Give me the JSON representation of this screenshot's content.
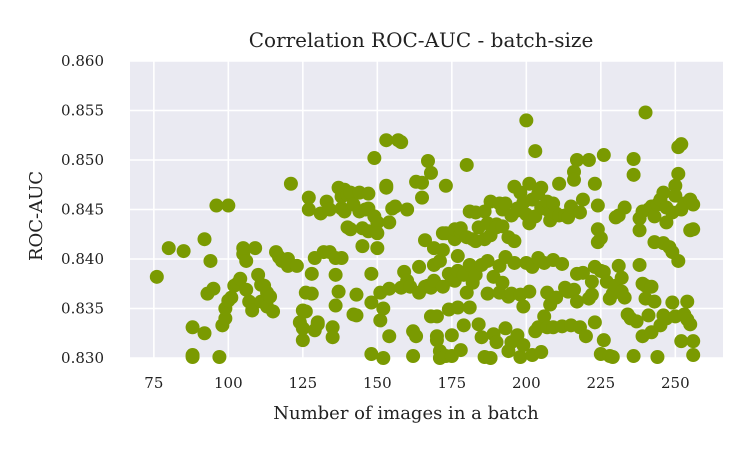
{
  "chart_data": {
    "type": "scatter",
    "title": "Correlation ROC-AUC - batch-size",
    "xlabel": "Number of images in a batch",
    "ylabel": "ROC-AUC",
    "xlim": [
      67,
      266
    ],
    "ylim": [
      0.83,
      0.86
    ],
    "xticks": [
      75,
      100,
      125,
      150,
      175,
      200,
      225,
      250
    ],
    "yticks": [
      "0.830",
      "0.835",
      "0.840",
      "0.845",
      "0.850",
      "0.855",
      "0.860"
    ],
    "grid": true,
    "colors": {
      "marker": "#7a9a01",
      "plot_bg": "#eaeaf2",
      "grid": "#ffffff"
    },
    "points": [
      [
        76,
        0.8382
      ],
      [
        80,
        0.8411
      ],
      [
        85,
        0.8408
      ],
      [
        88,
        0.8331
      ],
      [
        88,
        0.8303
      ],
      [
        88,
        0.8301
      ],
      [
        92,
        0.8325
      ],
      [
        92,
        0.842
      ],
      [
        93,
        0.8365
      ],
      [
        94,
        0.8398
      ],
      [
        95,
        0.837
      ],
      [
        96,
        0.8454
      ],
      [
        97,
        0.8301
      ],
      [
        98,
        0.8333
      ],
      [
        99,
        0.834
      ],
      [
        99,
        0.835
      ],
      [
        100,
        0.8454
      ],
      [
        100,
        0.8358
      ],
      [
        101,
        0.8361
      ],
      [
        102,
        0.8373
      ],
      [
        103,
        0.8375
      ],
      [
        104,
        0.838
      ],
      [
        105,
        0.8405
      ],
      [
        105,
        0.8411
      ],
      [
        106,
        0.8398
      ],
      [
        106,
        0.8369
      ],
      [
        107,
        0.8357
      ],
      [
        108,
        0.8348
      ],
      [
        109,
        0.8411
      ],
      [
        110,
        0.8384
      ],
      [
        111,
        0.8357
      ],
      [
        111,
        0.8374
      ],
      [
        112,
        0.8373
      ],
      [
        113,
        0.8352
      ],
      [
        113,
        0.8366
      ],
      [
        114,
        0.8362
      ],
      [
        115,
        0.8347
      ],
      [
        116,
        0.8407
      ],
      [
        117,
        0.8402
      ],
      [
        118,
        0.8398
      ],
      [
        120,
        0.84
      ],
      [
        120,
        0.8393
      ],
      [
        121,
        0.8476
      ],
      [
        123,
        0.8393
      ],
      [
        124,
        0.8336
      ],
      [
        125,
        0.8348
      ],
      [
        125,
        0.8318
      ],
      [
        125,
        0.833
      ],
      [
        126,
        0.8347
      ],
      [
        126,
        0.8366
      ],
      [
        127,
        0.845
      ],
      [
        127,
        0.8462
      ],
      [
        128,
        0.8385
      ],
      [
        128,
        0.8365
      ],
      [
        129,
        0.8401
      ],
      [
        129,
        0.8328
      ],
      [
        130,
        0.8336
      ],
      [
        130,
        0.8334
      ],
      [
        131,
        0.8446
      ],
      [
        132,
        0.8407
      ],
      [
        133,
        0.8458
      ],
      [
        134,
        0.8407
      ],
      [
        134,
        0.845
      ],
      [
        135,
        0.8331
      ],
      [
        135,
        0.8321
      ],
      [
        136,
        0.8401
      ],
      [
        136,
        0.8384
      ],
      [
        136,
        0.8353
      ],
      [
        137,
        0.8367
      ],
      [
        137,
        0.8472
      ],
      [
        138,
        0.8401
      ],
      [
        138,
        0.8451
      ],
      [
        138,
        0.8463
      ],
      [
        139,
        0.8448
      ],
      [
        139,
        0.847
      ],
      [
        140,
        0.8432
      ],
      [
        140,
        0.8465
      ],
      [
        141,
        0.843
      ],
      [
        141,
        0.8467
      ],
      [
        142,
        0.8455
      ],
      [
        142,
        0.8344
      ],
      [
        143,
        0.8343
      ],
      [
        143,
        0.8364
      ],
      [
        144,
        0.8448
      ],
      [
        144,
        0.8467
      ],
      [
        145,
        0.8431
      ],
      [
        145,
        0.8413
      ],
      [
        146,
        0.845
      ],
      [
        147,
        0.8428
      ],
      [
        147,
        0.8466
      ],
      [
        147,
        0.8451
      ],
      [
        148,
        0.8385
      ],
      [
        148,
        0.8356
      ],
      [
        148,
        0.8304
      ],
      [
        149,
        0.8502
      ],
      [
        149,
        0.8443
      ],
      [
        150,
        0.8437
      ],
      [
        150,
        0.8411
      ],
      [
        150,
        0.8426
      ],
      [
        151,
        0.8366
      ],
      [
        151,
        0.8338
      ],
      [
        152,
        0.835
      ],
      [
        152,
        0.83
      ],
      [
        153,
        0.8474
      ],
      [
        153,
        0.852
      ],
      [
        153,
        0.8472
      ],
      [
        154,
        0.837
      ],
      [
        154,
        0.8322
      ],
      [
        154,
        0.8437
      ],
      [
        155,
        0.8451
      ],
      [
        156,
        0.8453
      ],
      [
        157,
        0.852
      ],
      [
        158,
        0.8518
      ],
      [
        158,
        0.8371
      ],
      [
        159,
        0.8387
      ],
      [
        160,
        0.845
      ],
      [
        160,
        0.8378
      ],
      [
        161,
        0.8372
      ],
      [
        162,
        0.8327
      ],
      [
        162,
        0.8302
      ],
      [
        163,
        0.8478
      ],
      [
        163,
        0.8322
      ],
      [
        164,
        0.8366
      ],
      [
        164,
        0.8392
      ],
      [
        165,
        0.8462
      ],
      [
        165,
        0.8477
      ],
      [
        166,
        0.8419
      ],
      [
        166,
        0.8372
      ],
      [
        167,
        0.8499
      ],
      [
        167,
        0.8373
      ],
      [
        168,
        0.8487
      ],
      [
        168,
        0.8342
      ],
      [
        168,
        0.8371
      ],
      [
        169,
        0.8411
      ],
      [
        169,
        0.8394
      ],
      [
        169,
        0.8378
      ],
      [
        170,
        0.8342
      ],
      [
        170,
        0.8322
      ],
      [
        170,
        0.8318
      ],
      [
        171,
        0.8398
      ],
      [
        171,
        0.8307
      ],
      [
        171,
        0.83
      ],
      [
        172,
        0.8426
      ],
      [
        172,
        0.8409
      ],
      [
        172,
        0.8372
      ],
      [
        173,
        0.8474
      ],
      [
        173,
        0.8426
      ],
      [
        173,
        0.8302
      ],
      [
        174,
        0.8385
      ],
      [
        174,
        0.8349
      ],
      [
        175,
        0.8379
      ],
      [
        175,
        0.8323
      ],
      [
        175,
        0.8302
      ],
      [
        176,
        0.842
      ],
      [
        176,
        0.843
      ],
      [
        176,
        0.8378
      ],
      [
        177,
        0.8388
      ],
      [
        177,
        0.8403
      ],
      [
        177,
        0.8351
      ],
      [
        178,
        0.8427
      ],
      [
        178,
        0.8431
      ],
      [
        178,
        0.8308
      ],
      [
        179,
        0.8384
      ],
      [
        179,
        0.8333
      ],
      [
        180,
        0.8495
      ],
      [
        180,
        0.8422
      ],
      [
        180,
        0.8366
      ],
      [
        181,
        0.8448
      ],
      [
        181,
        0.8351
      ],
      [
        181,
        0.8394
      ],
      [
        182,
        0.842
      ],
      [
        182,
        0.8376
      ],
      [
        183,
        0.8447
      ],
      [
        183,
        0.8418
      ],
      [
        183,
        0.8384
      ],
      [
        184,
        0.8432
      ],
      [
        184,
        0.8334
      ],
      [
        185,
        0.8394
      ],
      [
        185,
        0.8321
      ],
      [
        186,
        0.8448
      ],
      [
        186,
        0.842
      ],
      [
        186,
        0.8301
      ],
      [
        187,
        0.8436
      ],
      [
        187,
        0.8398
      ],
      [
        187,
        0.8365
      ],
      [
        188,
        0.8458
      ],
      [
        188,
        0.8424
      ],
      [
        188,
        0.83
      ],
      [
        189,
        0.8382
      ],
      [
        189,
        0.8324
      ],
      [
        190,
        0.8435
      ],
      [
        190,
        0.8432
      ],
      [
        190,
        0.8316
      ],
      [
        191,
        0.8456
      ],
      [
        191,
        0.8393
      ],
      [
        191,
        0.8366
      ],
      [
        192,
        0.845
      ],
      [
        192,
        0.8433
      ],
      [
        192,
        0.8376
      ],
      [
        193,
        0.8456
      ],
      [
        193,
        0.8402
      ],
      [
        193,
        0.833
      ],
      [
        194,
        0.8422
      ],
      [
        194,
        0.8362
      ],
      [
        194,
        0.8307
      ],
      [
        195,
        0.8444
      ],
      [
        195,
        0.8365
      ],
      [
        195,
        0.8316
      ],
      [
        196,
        0.8473
      ],
      [
        196,
        0.8418
      ],
      [
        196,
        0.8396
      ],
      [
        197,
        0.8451
      ],
      [
        197,
        0.8449
      ],
      [
        197,
        0.8323
      ],
      [
        198,
        0.8467
      ],
      [
        198,
        0.8364
      ],
      [
        198,
        0.8301
      ],
      [
        199,
        0.8457
      ],
      [
        199,
        0.8352
      ],
      [
        199,
        0.8313
      ],
      [
        200,
        0.854
      ],
      [
        200,
        0.8445
      ],
      [
        200,
        0.8396
      ],
      [
        201,
        0.8476
      ],
      [
        201,
        0.8436
      ],
      [
        201,
        0.8367
      ],
      [
        202,
        0.846
      ],
      [
        202,
        0.8392
      ],
      [
        202,
        0.8303
      ],
      [
        203,
        0.8509
      ],
      [
        203,
        0.8443
      ],
      [
        203,
        0.8327
      ],
      [
        204,
        0.8466
      ],
      [
        204,
        0.8401
      ],
      [
        204,
        0.8331
      ],
      [
        205,
        0.8452
      ],
      [
        205,
        0.8472
      ],
      [
        205,
        0.8306
      ],
      [
        206,
        0.8451
      ],
      [
        206,
        0.8396
      ],
      [
        206,
        0.8342
      ],
      [
        207,
        0.8458
      ],
      [
        207,
        0.8366
      ],
      [
        207,
        0.8331
      ],
      [
        208,
        0.8447
      ],
      [
        208,
        0.8439
      ],
      [
        208,
        0.8354
      ],
      [
        209,
        0.8456
      ],
      [
        209,
        0.8399
      ],
      [
        209,
        0.8331
      ],
      [
        210,
        0.8446
      ],
      [
        210,
        0.8361
      ],
      [
        211,
        0.8476
      ],
      [
        211,
        0.8444
      ],
      [
        212,
        0.8395
      ],
      [
        212,
        0.8332
      ],
      [
        213,
        0.8444
      ],
      [
        213,
        0.8371
      ],
      [
        214,
        0.8442
      ],
      [
        214,
        0.8367
      ],
      [
        215,
        0.8453
      ],
      [
        215,
        0.8333
      ],
      [
        216,
        0.8488
      ],
      [
        216,
        0.848
      ],
      [
        216,
        0.8369
      ],
      [
        217,
        0.85
      ],
      [
        217,
        0.8385
      ],
      [
        217,
        0.8357
      ],
      [
        218,
        0.8447
      ],
      [
        218,
        0.8331
      ],
      [
        219,
        0.846
      ],
      [
        219,
        0.8386
      ],
      [
        220,
        0.8322
      ],
      [
        221,
        0.85
      ],
      [
        221,
        0.836
      ],
      [
        222,
        0.8377
      ],
      [
        222,
        0.8364
      ],
      [
        223,
        0.8476
      ],
      [
        223,
        0.8392
      ],
      [
        223,
        0.8336
      ],
      [
        224,
        0.8454
      ],
      [
        224,
        0.843
      ],
      [
        224,
        0.8417
      ],
      [
        225,
        0.8421
      ],
      [
        225,
        0.8388
      ],
      [
        225,
        0.8304
      ],
      [
        226,
        0.8505
      ],
      [
        226,
        0.8387
      ],
      [
        226,
        0.8318
      ],
      [
        227,
        0.8377
      ],
      [
        228,
        0.836
      ],
      [
        228,
        0.8302
      ],
      [
        229,
        0.8365
      ],
      [
        229,
        0.8301
      ],
      [
        230,
        0.8442
      ],
      [
        230,
        0.8373
      ],
      [
        231,
        0.8444
      ],
      [
        231,
        0.8393
      ],
      [
        232,
        0.8381
      ],
      [
        232,
        0.8367
      ],
      [
        233,
        0.8452
      ],
      [
        233,
        0.8361
      ],
      [
        234,
        0.8344
      ],
      [
        235,
        0.834
      ],
      [
        236,
        0.8485
      ],
      [
        236,
        0.8501
      ],
      [
        236,
        0.8302
      ],
      [
        237,
        0.8337
      ],
      [
        238,
        0.8441
      ],
      [
        238,
        0.8429
      ],
      [
        238,
        0.8394
      ],
      [
        239,
        0.8448
      ],
      [
        239,
        0.8375
      ],
      [
        239,
        0.8322
      ],
      [
        240,
        0.8548
      ],
      [
        240,
        0.8373
      ],
      [
        240,
        0.836
      ],
      [
        241,
        0.845
      ],
      [
        241,
        0.8343
      ],
      [
        242,
        0.8453
      ],
      [
        242,
        0.8372
      ],
      [
        242,
        0.8326
      ],
      [
        243,
        0.8443
      ],
      [
        243,
        0.8417
      ],
      [
        243,
        0.8357
      ],
      [
        244,
        0.8455
      ],
      [
        244,
        0.8301
      ],
      [
        245,
        0.846
      ],
      [
        245,
        0.8333
      ],
      [
        246,
        0.8467
      ],
      [
        246,
        0.8416
      ],
      [
        246,
        0.8343
      ],
      [
        247,
        0.8452
      ],
      [
        247,
        0.8437
      ],
      [
        247,
        0.834
      ],
      [
        248,
        0.8412
      ],
      [
        249,
        0.8447
      ],
      [
        249,
        0.8407
      ],
      [
        249,
        0.8356
      ],
      [
        250,
        0.8474
      ],
      [
        250,
        0.8464
      ],
      [
        250,
        0.8342
      ],
      [
        251,
        0.8486
      ],
      [
        251,
        0.8513
      ],
      [
        251,
        0.8398
      ],
      [
        252,
        0.845
      ],
      [
        252,
        0.8516
      ],
      [
        252,
        0.8317
      ],
      [
        253,
        0.8456
      ],
      [
        253,
        0.8344
      ],
      [
        254,
        0.8357
      ],
      [
        254,
        0.8339
      ],
      [
        255,
        0.846
      ],
      [
        255,
        0.8429
      ],
      [
        255,
        0.8334
      ],
      [
        256,
        0.8455
      ],
      [
        256,
        0.843
      ],
      [
        256,
        0.8317
      ],
      [
        256,
        0.8303
      ]
    ]
  }
}
